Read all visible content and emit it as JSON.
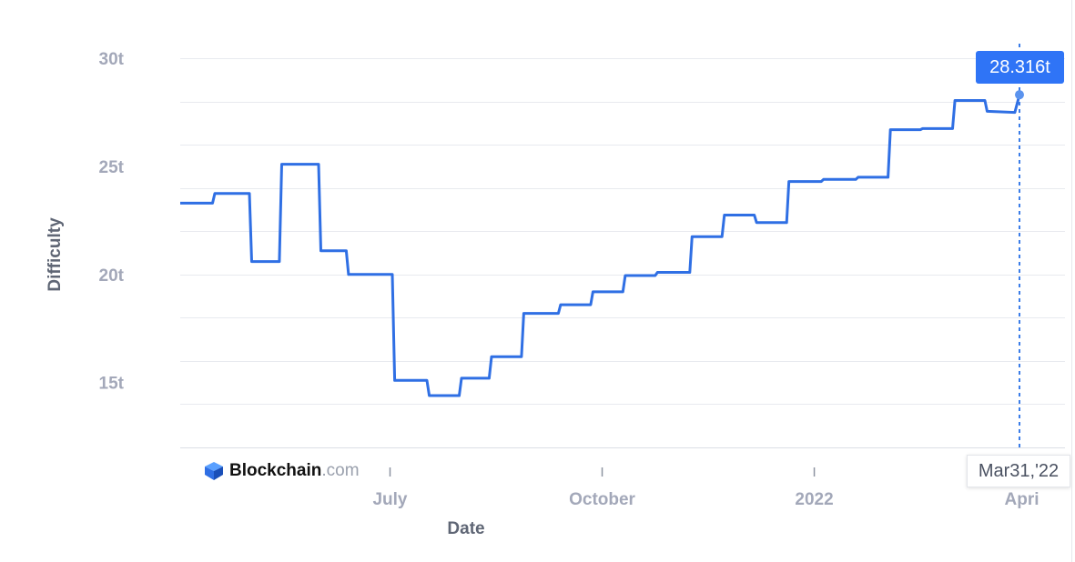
{
  "chart_data": {
    "type": "line",
    "title": "",
    "xlabel": "Date",
    "ylabel": "Difficulty",
    "x_ticks": [
      "July",
      "October",
      "2022",
      "Apri"
    ],
    "y_ticks": [
      "30t",
      "25t",
      "20t",
      "15t"
    ],
    "ylim": [
      12,
      30.2
    ],
    "grid": true,
    "series": [
      {
        "color": "#2f6fe4",
        "x": [
          "2021-04-01",
          "2021-04-15",
          "2021-04-16",
          "2021-05-01",
          "2021-05-02",
          "2021-05-14",
          "2021-05-15",
          "2021-05-31",
          "2021-06-01",
          "2021-06-12",
          "2021-06-13",
          "2021-07-02",
          "2021-07-03",
          "2021-07-17",
          "2021-07-18",
          "2021-07-31",
          "2021-08-01",
          "2021-08-13",
          "2021-08-14",
          "2021-08-27",
          "2021-08-28",
          "2021-09-12",
          "2021-09-13",
          "2021-09-26",
          "2021-09-27",
          "2021-10-10",
          "2021-10-11",
          "2021-10-24",
          "2021-10-25",
          "2021-11-08",
          "2021-11-09",
          "2021-11-22",
          "2021-11-23",
          "2021-12-06",
          "2021-12-07",
          "2021-12-20",
          "2021-12-21",
          "2022-01-04",
          "2022-01-05",
          "2022-01-19",
          "2022-01-20",
          "2022-02-02",
          "2022-02-03",
          "2022-02-16",
          "2022-02-17",
          "2022-03-02",
          "2022-03-03",
          "2022-03-16",
          "2022-03-17",
          "2022-03-29",
          "2022-03-31"
        ],
        "values": [
          23.3,
          23.3,
          23.75,
          23.75,
          20.6,
          20.6,
          25.1,
          25.1,
          21.1,
          21.1,
          20.0,
          20.0,
          15.1,
          15.1,
          14.4,
          14.4,
          15.2,
          15.2,
          16.2,
          16.2,
          18.2,
          18.2,
          18.6,
          18.6,
          19.2,
          19.2,
          19.95,
          19.95,
          20.1,
          20.1,
          21.75,
          21.75,
          22.75,
          22.75,
          22.4,
          22.4,
          24.3,
          24.3,
          24.4,
          24.4,
          24.5,
          24.5,
          26.7,
          26.7,
          26.75,
          26.75,
          28.05,
          28.05,
          27.55,
          27.5,
          28.316
        ]
      }
    ],
    "tooltip": {
      "value": "28.316t",
      "date": "Mar31,'22"
    },
    "watermark": {
      "brand": "Blockchain",
      "suffix": ".com"
    },
    "colors": {
      "line": "#2f6fe4",
      "tooltip_bg": "#2f74f6",
      "grid": "#e8eaef",
      "crosshair": "#3b7de8"
    }
  }
}
